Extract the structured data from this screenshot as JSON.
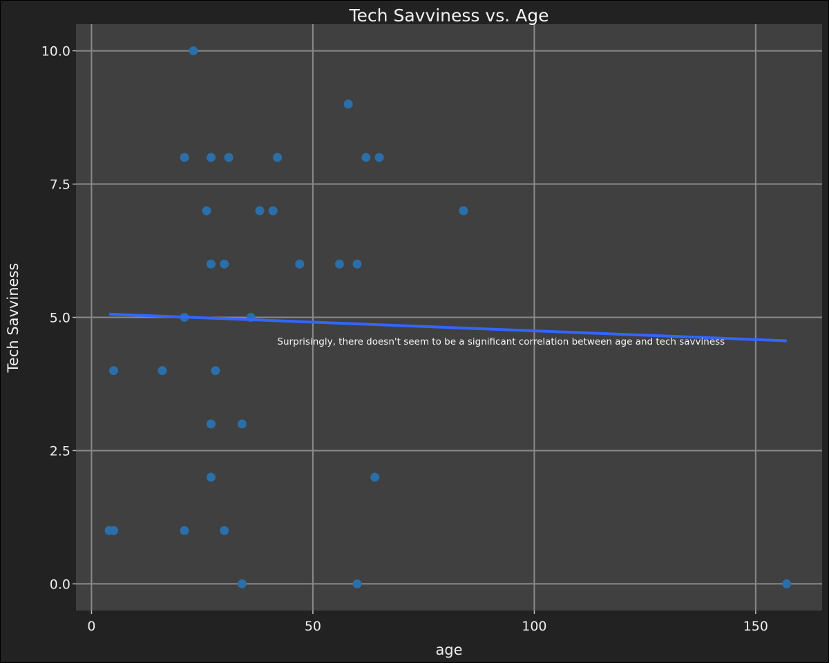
{
  "chart_data": {
    "type": "scatter",
    "title": "Tech Savviness vs. Age",
    "xlabel": "age",
    "ylabel": "Tech Savviness",
    "xlim": [
      -3.5,
      165
    ],
    "ylim": [
      -0.5,
      10.5
    ],
    "xticks": [
      0,
      50,
      100,
      150
    ],
    "xtick_labels": [
      "0",
      "50",
      "100",
      "150"
    ],
    "yticks": [
      0,
      2.5,
      5,
      7.5,
      10
    ],
    "ytick_labels": [
      "0.0",
      "2.5",
      "5.0",
      "7.5",
      "10.0"
    ],
    "grid": true,
    "point_color": "#2a6faa",
    "trend_color": "#3366ff",
    "points": [
      {
        "x": 23,
        "y": 10
      },
      {
        "x": 58,
        "y": 9
      },
      {
        "x": 21,
        "y": 8
      },
      {
        "x": 27,
        "y": 8
      },
      {
        "x": 31,
        "y": 8
      },
      {
        "x": 42,
        "y": 8
      },
      {
        "x": 62,
        "y": 8
      },
      {
        "x": 65,
        "y": 8
      },
      {
        "x": 26,
        "y": 7
      },
      {
        "x": 38,
        "y": 7
      },
      {
        "x": 41,
        "y": 7
      },
      {
        "x": 84,
        "y": 7
      },
      {
        "x": 27,
        "y": 6
      },
      {
        "x": 30,
        "y": 6
      },
      {
        "x": 47,
        "y": 6
      },
      {
        "x": 56,
        "y": 6
      },
      {
        "x": 60,
        "y": 6
      },
      {
        "x": 21,
        "y": 5
      },
      {
        "x": 36,
        "y": 5
      },
      {
        "x": 5,
        "y": 4
      },
      {
        "x": 16,
        "y": 4
      },
      {
        "x": 28,
        "y": 4
      },
      {
        "x": 27,
        "y": 3
      },
      {
        "x": 34,
        "y": 3
      },
      {
        "x": 27,
        "y": 2
      },
      {
        "x": 64,
        "y": 2
      },
      {
        "x": 4,
        "y": 1
      },
      {
        "x": 5,
        "y": 1
      },
      {
        "x": 21,
        "y": 1
      },
      {
        "x": 30,
        "y": 1
      },
      {
        "x": 34,
        "y": 0
      },
      {
        "x": 60,
        "y": 0
      },
      {
        "x": 157,
        "y": 0
      }
    ],
    "trend_line": [
      {
        "x": 4,
        "y": 5.06
      },
      {
        "x": 157,
        "y": 4.56
      }
    ],
    "annotation": {
      "text": "Surprisingly, there doesn't seem to be a significant correlation between age and tech savviness",
      "x": 92.5,
      "y": 4.55
    }
  }
}
